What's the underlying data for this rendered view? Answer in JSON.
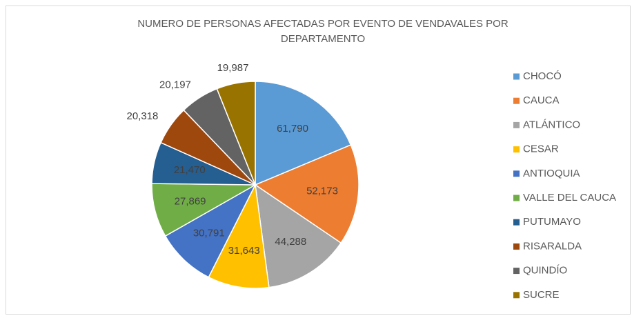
{
  "chart_data": {
    "type": "pie",
    "title": "NUMERO DE PERSONAS AFECTADAS POR EVENTO DE VENDAVALES POR DEPARTAMENTO",
    "categories": [
      "CHOCÓ",
      "CAUCA",
      "ATLÁNTICO",
      "CESAR",
      "ANTIOQUIA",
      "VALLE DEL CAUCA",
      "PUTUMAYO",
      "RISARALDA",
      "QUINDÍO",
      "SUCRE"
    ],
    "values": [
      61790,
      52173,
      44288,
      31643,
      30791,
      27869,
      21470,
      20318,
      20197,
      19987
    ],
    "value_labels": [
      "61,790",
      "52,173",
      "44,288",
      "31,643",
      "30,791",
      "27,869",
      "21,470",
      "20,318",
      "20,197",
      "19,987"
    ],
    "colors": [
      "#5b9bd5",
      "#ed7d31",
      "#a5a5a5",
      "#ffc000",
      "#4472c4",
      "#70ad47",
      "#255e91",
      "#9e480e",
      "#636363",
      "#997300"
    ],
    "legend": "right"
  }
}
